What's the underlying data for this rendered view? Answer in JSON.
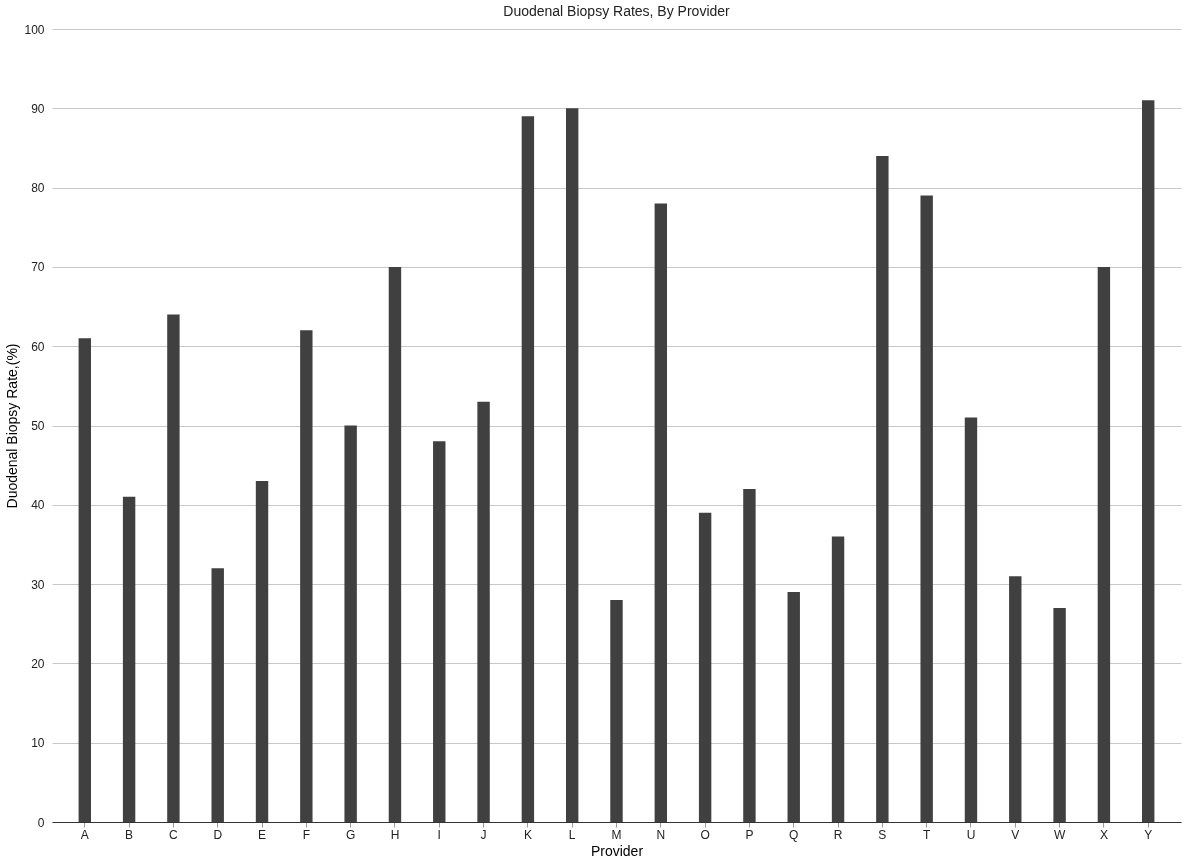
{
  "chart_data": {
    "type": "bar",
    "title": "Duodenal Biopsy Rates, By Provider",
    "xlabel": "Provider",
    "ylabel": "Duodenal Biopsy Rate,(%)",
    "categories": [
      "A",
      "B",
      "C",
      "D",
      "E",
      "F",
      "G",
      "H",
      "I",
      "J",
      "K",
      "L",
      "M",
      "N",
      "O",
      "P",
      "Q",
      "R",
      "S",
      "T",
      "U",
      "V",
      "W",
      "X",
      "Y"
    ],
    "values": [
      61,
      41,
      64,
      32,
      43,
      62,
      50,
      70,
      48,
      53,
      89,
      90,
      28,
      78,
      39,
      42,
      29,
      36,
      84,
      79,
      51,
      31,
      27,
      70,
      91
    ],
    "color": "#404040",
    "ylim": [
      0,
      100
    ],
    "yticks": [
      0,
      10,
      20,
      30,
      40,
      50,
      60,
      70,
      80,
      90,
      100
    ],
    "grid": "y"
  }
}
